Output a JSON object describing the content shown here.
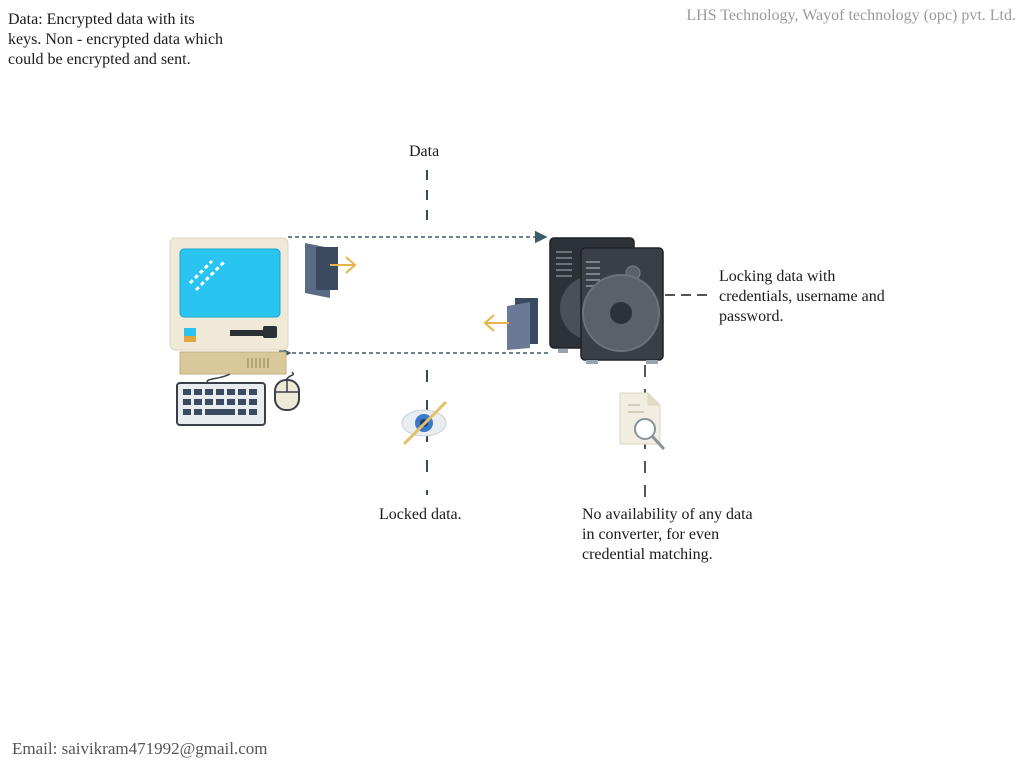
{
  "header": {
    "description": "Data: Encrypted data with its\nkeys. Non - encrypted data which\ncould  be encrypted and sent.",
    "company": "LHS Technology, Wayof technology (opc) pvt. Ltd."
  },
  "diagram": {
    "data_label": "Data",
    "locking_label": "Locking data with\ncredentials, username and\npassword.",
    "locked_label": "Locked data.",
    "no_availability_label": "No availability of any data\nin converter, for even\ncredential matching."
  },
  "footer": {
    "email": "Email:  saivikram471992@gmail.com"
  },
  "icons": [
    "computer-icon",
    "keyboard-icon",
    "mouse-icon",
    "document-send-icon",
    "document-receive-icon",
    "server-icon",
    "hidden-eye-icon",
    "document-search-icon"
  ],
  "colors": {
    "arrow": "#3d5a6c",
    "dash": "#3a4a55",
    "screen": "#29c4f0",
    "monitor": "#efe9d8",
    "server": "#3a3f47",
    "company_text": "#9a9a9a"
  }
}
